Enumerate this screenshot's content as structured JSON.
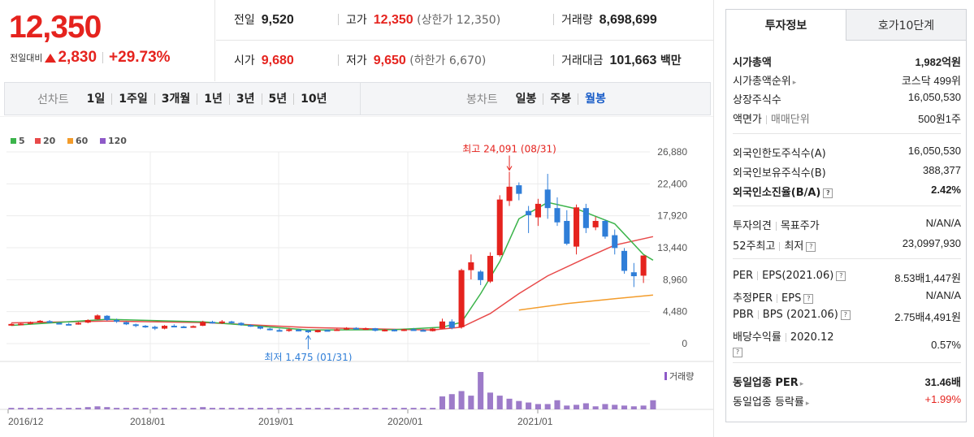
{
  "price": {
    "current": "12,350",
    "change_label": "전일대비",
    "change_amount": "2,830",
    "change_rate": "+29.73%"
  },
  "quote": {
    "prev_close_label": "전일",
    "prev_close": "9,520",
    "high_label": "고가",
    "high": "12,350",
    "upper_limit": "(상한가 12,350)",
    "volume_label": "거래량",
    "volume": "8,698,699",
    "open_label": "시가",
    "open": "9,680",
    "low_label": "저가",
    "low": "9,650",
    "lower_limit": "(하한가 6,670)",
    "amount_label": "거래대금",
    "amount": "101,663",
    "amount_unit": "백만"
  },
  "period_bar": {
    "line_title": "선차트",
    "line_items": [
      "1일",
      "1주일",
      "3개월",
      "1년",
      "3년",
      "5년",
      "10년"
    ],
    "candle_title": "봉차트",
    "candle_items": [
      "일봉",
      "주봉",
      "월봉"
    ]
  },
  "tabs": [
    "투자정보",
    "호가10단계"
  ],
  "info": {
    "market_cap_label": "시가총액",
    "market_cap": "1,982억원",
    "cap_rank_label": "시가총액순위",
    "cap_rank": "코스닥 499위",
    "shares_label": "상장주식수",
    "shares": "16,050,530",
    "par_label": "액면가",
    "unit_label": "매매단위",
    "par": "500원",
    "trade_unit": "1주",
    "foreign_limit_label": "외국인한도주식수(A)",
    "foreign_limit": "16,050,530",
    "foreign_hold_label": "외국인보유주식수(B)",
    "foreign_hold": "388,377",
    "foreign_ratio_label": "외국인소진율(B/A)",
    "foreign_ratio": "2.42%",
    "opinion_label": "투자의견",
    "target_label": "목표주가",
    "opinion": "N/A",
    "target": "N/A",
    "w52_high_label": "52주최고",
    "w52_low_label": "최저",
    "w52_high": "23,099",
    "w52_low": "7,930",
    "per_label": "PER",
    "eps_label": "EPS(2021.06)",
    "per": "8.53배",
    "eps": "1,447원",
    "est_per_label": "추정PER",
    "est_eps_label": "EPS",
    "est_per": "N/A",
    "est_eps": "N/A",
    "pbr_label": "PBR",
    "bps_label": "BPS (2021.06)",
    "pbr": "2.75배",
    "bps": "4,491원",
    "div_label": "배당수익률",
    "div_date": "2020.12",
    "div": "0.57%",
    "ind_per_label": "동일업종 PER",
    "ind_per": "31.46배",
    "ind_rate_label": "동일업종 등락률",
    "ind_rate": "+1.99%"
  },
  "chart_data": {
    "type": "candlestick",
    "legend": [
      {
        "name": "5",
        "color": "#3cb44b"
      },
      {
        "name": "20",
        "color": "#e84a4a"
      },
      {
        "name": "60",
        "color": "#f39c2b"
      },
      {
        "name": "120",
        "color": "#8e5ac8"
      }
    ],
    "y_ticks": [
      "26,880",
      "22,400",
      "17,920",
      "13,440",
      "8,960",
      "4,480",
      "0"
    ],
    "ylim": [
      0,
      26880
    ],
    "x_ticks": [
      "2016/12",
      "2018/01",
      "2019/01",
      "2020/01",
      "2021/01"
    ],
    "high_annotation": "최고 24,091 (08/31)",
    "low_annotation": "최저 1,475 (01/31)",
    "volume_label": "거래량",
    "up_color": "#e5231e",
    "down_color": "#2f7ed8",
    "candles": [
      {
        "o": 2650,
        "h": 2850,
        "l": 2500,
        "c": 2750
      },
      {
        "o": 2700,
        "h": 2900,
        "l": 2600,
        "c": 2800
      },
      {
        "o": 2800,
        "h": 3100,
        "l": 2700,
        "c": 3000
      },
      {
        "o": 3050,
        "h": 3300,
        "l": 2900,
        "c": 3200
      },
      {
        "o": 3150,
        "h": 3300,
        "l": 2900,
        "c": 2950
      },
      {
        "o": 2900,
        "h": 3000,
        "l": 2700,
        "c": 2800
      },
      {
        "o": 2750,
        "h": 2900,
        "l": 2600,
        "c": 2700
      },
      {
        "o": 2700,
        "h": 3000,
        "l": 2650,
        "c": 2900
      },
      {
        "o": 2950,
        "h": 3400,
        "l": 2850,
        "c": 3300
      },
      {
        "o": 3400,
        "h": 4100,
        "l": 3300,
        "c": 3950
      },
      {
        "o": 3900,
        "h": 4000,
        "l": 3200,
        "c": 3300
      },
      {
        "o": 3300,
        "h": 3500,
        "l": 2900,
        "c": 3100
      },
      {
        "o": 3000,
        "h": 3100,
        "l": 2600,
        "c": 2700
      },
      {
        "o": 2700,
        "h": 2800,
        "l": 2300,
        "c": 2500
      },
      {
        "o": 2500,
        "h": 2600,
        "l": 2200,
        "c": 2400
      },
      {
        "o": 2350,
        "h": 2500,
        "l": 1900,
        "c": 2100
      },
      {
        "o": 2100,
        "h": 2600,
        "l": 2000,
        "c": 2500
      },
      {
        "o": 2500,
        "h": 2700,
        "l": 2300,
        "c": 2400
      },
      {
        "o": 2400,
        "h": 2500,
        "l": 2200,
        "c": 2350
      },
      {
        "o": 2350,
        "h": 2550,
        "l": 2250,
        "c": 2450
      },
      {
        "o": 2500,
        "h": 3200,
        "l": 2450,
        "c": 3050
      },
      {
        "o": 3050,
        "h": 3200,
        "l": 2800,
        "c": 2900
      },
      {
        "o": 2900,
        "h": 3300,
        "l": 2750,
        "c": 3100
      },
      {
        "o": 3100,
        "h": 3200,
        "l": 2800,
        "c": 2900
      },
      {
        "o": 2900,
        "h": 3000,
        "l": 2500,
        "c": 2600
      },
      {
        "o": 2600,
        "h": 2700,
        "l": 2350,
        "c": 2450
      },
      {
        "o": 2400,
        "h": 2500,
        "l": 2000,
        "c": 2100
      },
      {
        "o": 2100,
        "h": 2200,
        "l": 1850,
        "c": 1950
      },
      {
        "o": 1900,
        "h": 2100,
        "l": 1700,
        "c": 1800
      },
      {
        "o": 1800,
        "h": 2200,
        "l": 1650,
        "c": 2000
      },
      {
        "o": 1950,
        "h": 2050,
        "l": 1750,
        "c": 1850
      },
      {
        "o": 1850,
        "h": 1950,
        "l": 1475,
        "c": 1600
      },
      {
        "o": 1600,
        "h": 1950,
        "l": 1550,
        "c": 1900
      },
      {
        "o": 1900,
        "h": 2000,
        "l": 1750,
        "c": 1850
      },
      {
        "o": 1850,
        "h": 2100,
        "l": 1800,
        "c": 2000
      },
      {
        "o": 2000,
        "h": 2300,
        "l": 1900,
        "c": 2200
      },
      {
        "o": 2200,
        "h": 2300,
        "l": 1950,
        "c": 2050
      },
      {
        "o": 2050,
        "h": 2250,
        "l": 1950,
        "c": 2150
      },
      {
        "o": 2150,
        "h": 2200,
        "l": 1700,
        "c": 1800
      },
      {
        "o": 1800,
        "h": 2050,
        "l": 1700,
        "c": 1950
      },
      {
        "o": 1950,
        "h": 2050,
        "l": 1700,
        "c": 1800
      },
      {
        "o": 1800,
        "h": 2100,
        "l": 1750,
        "c": 2000
      },
      {
        "o": 2000,
        "h": 2200,
        "l": 1850,
        "c": 1900
      },
      {
        "o": 1900,
        "h": 2050,
        "l": 1700,
        "c": 1750
      },
      {
        "o": 1750,
        "h": 2200,
        "l": 1700,
        "c": 2100
      },
      {
        "o": 2100,
        "h": 3500,
        "l": 2050,
        "c": 3100
      },
      {
        "o": 3100,
        "h": 3400,
        "l": 2000,
        "c": 2200
      },
      {
        "o": 2300,
        "h": 10500,
        "l": 2100,
        "c": 10300
      },
      {
        "o": 10300,
        "h": 12500,
        "l": 9000,
        "c": 11400
      },
      {
        "o": 10100,
        "h": 10300,
        "l": 8200,
        "c": 8900
      },
      {
        "o": 8700,
        "h": 12800,
        "l": 8500,
        "c": 12300
      },
      {
        "o": 12400,
        "h": 20800,
        "l": 12200,
        "c": 20200
      },
      {
        "o": 20000,
        "h": 24091,
        "l": 19300,
        "c": 22000
      },
      {
        "o": 22200,
        "h": 22600,
        "l": 20100,
        "c": 21000
      },
      {
        "o": 18600,
        "h": 19300,
        "l": 15500,
        "c": 18000
      },
      {
        "o": 17700,
        "h": 20300,
        "l": 16500,
        "c": 19600
      },
      {
        "o": 21600,
        "h": 23800,
        "l": 17500,
        "c": 19000
      },
      {
        "o": 19000,
        "h": 20500,
        "l": 16500,
        "c": 17000
      },
      {
        "o": 17200,
        "h": 18700,
        "l": 13800,
        "c": 14000
      },
      {
        "o": 13600,
        "h": 19500,
        "l": 12500,
        "c": 19100
      },
      {
        "o": 19000,
        "h": 19600,
        "l": 15500,
        "c": 16200
      },
      {
        "o": 16300,
        "h": 17800,
        "l": 15900,
        "c": 17200
      },
      {
        "o": 17200,
        "h": 17400,
        "l": 14700,
        "c": 15000
      },
      {
        "o": 15200,
        "h": 16000,
        "l": 12500,
        "c": 13400
      },
      {
        "o": 13000,
        "h": 13400,
        "l": 9800,
        "c": 10200
      },
      {
        "o": 10000,
        "h": 11300,
        "l": 7930,
        "c": 9450
      },
      {
        "o": 9520,
        "h": 12350,
        "l": 8500,
        "c": 12350
      }
    ],
    "ma5": [
      [
        0,
        2550
      ],
      [
        10,
        3400
      ],
      [
        20,
        3050
      ],
      [
        31,
        1900
      ],
      [
        40,
        1950
      ],
      [
        45,
        2300
      ],
      [
        47,
        3000
      ],
      [
        49,
        7000
      ],
      [
        51,
        11500
      ],
      [
        53,
        17500
      ],
      [
        56,
        19800
      ],
      [
        59,
        18900
      ],
      [
        63,
        16800
      ],
      [
        66,
        12500
      ],
      [
        67,
        11700
      ]
    ],
    "ma20": [
      [
        0,
        2900
      ],
      [
        10,
        3150
      ],
      [
        20,
        2950
      ],
      [
        31,
        2250
      ],
      [
        44,
        1900
      ],
      [
        47,
        2300
      ],
      [
        50,
        4200
      ],
      [
        53,
        7000
      ],
      [
        56,
        9500
      ],
      [
        60,
        12000
      ],
      [
        63,
        13800
      ],
      [
        67,
        15000
      ]
    ],
    "ma60": [
      [
        53,
        4700
      ],
      [
        58,
        5600
      ],
      [
        63,
        6300
      ],
      [
        67,
        6800
      ]
    ],
    "volume": [
      2,
      2,
      2,
      2,
      2,
      2,
      2,
      2,
      3,
      4,
      3,
      2,
      2,
      2,
      2,
      2,
      2,
      2,
      2,
      2,
      3,
      2,
      2,
      2,
      2,
      2,
      2,
      2,
      2,
      2,
      2,
      2,
      2,
      2,
      2,
      2,
      2,
      2,
      2,
      2,
      2,
      2,
      2,
      2,
      2,
      17,
      20,
      24,
      18,
      49,
      22,
      18,
      14,
      11,
      9,
      7,
      7,
      12,
      5,
      6,
      8,
      4,
      7,
      6,
      5,
      4,
      5,
      12
    ]
  }
}
